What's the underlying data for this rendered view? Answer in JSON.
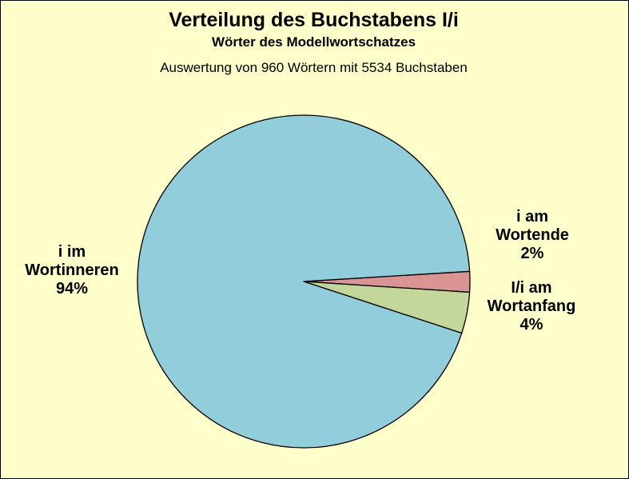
{
  "chart_data": {
    "type": "pie",
    "title": "Verteilung des Buchstabens I/i",
    "subtitle": "Wörter des Modellwortschatzes",
    "caption": "Auswertung von 960 Wörtern mit 5534 Buchstaben",
    "slices": [
      {
        "name_lines": [
          "i am",
          "Wortende"
        ],
        "value": 2,
        "value_label": "2%",
        "color": "#d99594"
      },
      {
        "name_lines": [
          "I/i am",
          "Wortanfang"
        ],
        "value": 4,
        "value_label": "4%",
        "color": "#c4d79b"
      },
      {
        "name_lines": [
          "i im",
          "Wortinneren"
        ],
        "value": 94,
        "value_label": "94%",
        "color": "#92cddc"
      }
    ]
  },
  "colors": {
    "background": "#ffffcc",
    "outline": "#000000"
  }
}
